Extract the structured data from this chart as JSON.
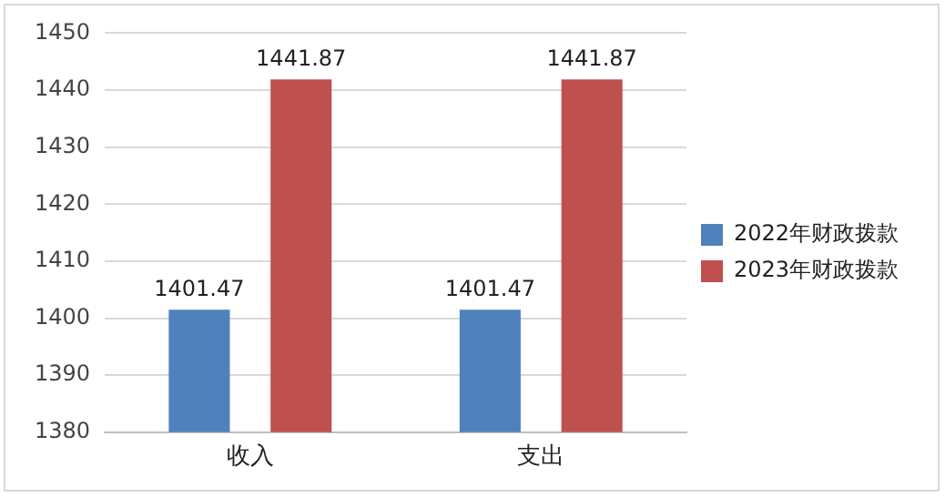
{
  "chart_data": {
    "type": "bar",
    "categories": [
      "收入",
      "支出"
    ],
    "series": [
      {
        "name": "2022年财政拨款",
        "color": "#4f81bd",
        "values": [
          1401.47,
          1401.47
        ]
      },
      {
        "name": "2023年财政拨款",
        "color": "#c0504d",
        "values": [
          1441.87,
          1441.87
        ]
      }
    ],
    "ylim": [
      1380,
      1450
    ],
    "yticks": [
      1380,
      1390,
      1400,
      1410,
      1420,
      1430,
      1440,
      1450
    ],
    "grid": "y",
    "legend": "right",
    "data_labels": true
  }
}
